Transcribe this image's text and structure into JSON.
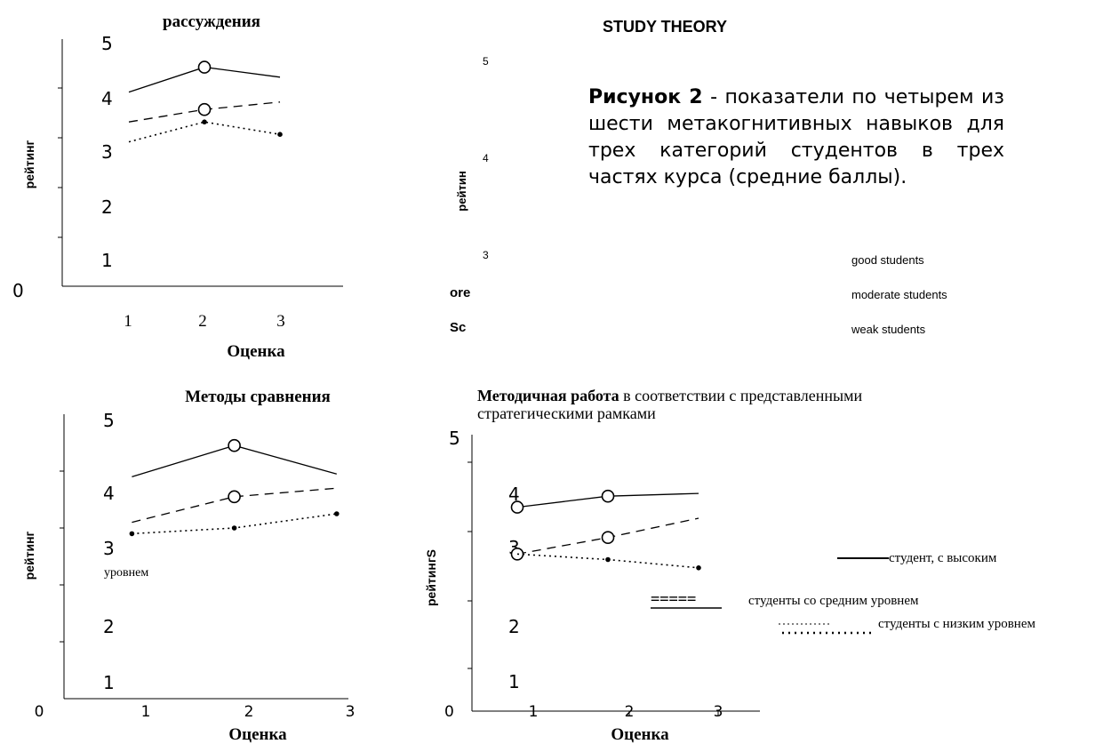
{
  "page_heading": "STUDY THEORY",
  "caption": {
    "label": "Рисунок 2",
    "text": " -  показатели по четырем из шести метакогнитивных навыков для трех категорий студентов в трех частях курса (средние баллы)."
  },
  "colors": {
    "line": "#000000",
    "background": "#ffffff"
  },
  "chart_data": [
    {
      "type": "line",
      "title": "рассуждения",
      "ylabel": "рейтинг",
      "xlabel": "Оценка",
      "x": [
        1,
        2,
        3
      ],
      "xticks": [
        "1",
        "2",
        "3"
      ],
      "ylim": [
        0,
        5
      ],
      "yticks": [
        "0",
        "1",
        "2",
        "3",
        "4",
        "5"
      ],
      "series": [
        {
          "style": "solid",
          "values": [
            3.9,
            4.4,
            4.2
          ],
          "markers": [
            "",
            "open",
            ""
          ]
        },
        {
          "style": "dashed",
          "values": [
            3.3,
            3.55,
            3.7
          ],
          "markers": [
            "",
            "open",
            ""
          ]
        },
        {
          "style": "dotted",
          "values": [
            2.9,
            3.3,
            3.05
          ],
          "markers": [
            "",
            "dot",
            "dot"
          ]
        }
      ]
    },
    {
      "type": "line",
      "title": "",
      "ylabel": "рейтин",
      "xlabel": "",
      "yticks": [
        "3",
        "4",
        "5"
      ],
      "side_labels": [
        "ore",
        "Sc"
      ],
      "legend": [
        "good students",
        "moderate students",
        "weak students"
      ],
      "series": []
    },
    {
      "type": "line",
      "title": "Методы сравнения",
      "ylabel": "рейтинг",
      "xlabel": "Оценка",
      "x": [
        0.8,
        1.7,
        2.6
      ],
      "xticks": [
        "0",
        "1",
        "2",
        "3"
      ],
      "ylim": [
        0,
        5
      ],
      "yticks": [
        "1",
        "2",
        "3",
        "4",
        "5"
      ],
      "annotations": [
        "уровнем"
      ],
      "series": [
        {
          "style": "solid",
          "values": [
            3.9,
            4.45,
            3.95
          ],
          "markers": [
            "",
            "open",
            ""
          ]
        },
        {
          "style": "dashed",
          "values": [
            3.1,
            3.55,
            3.7
          ],
          "markers": [
            "",
            "open",
            ""
          ]
        },
        {
          "style": "dotted",
          "values": [
            2.9,
            3.0,
            3.25
          ],
          "markers": [
            "dot",
            "dot",
            "dot"
          ]
        }
      ]
    },
    {
      "type": "line",
      "title": "Методичная работа в соответствии с представленными стратегическими рамками",
      "title_bold": "Методичная работа",
      "title_rest": " в соответствии с представленными",
      "title_line2": "стратегическими рамками",
      "ylabel": "рейтингS",
      "xlabel": "Оценка",
      "x": [
        1,
        2,
        3
      ],
      "xticks": [
        "1",
        "2",
        "3"
      ],
      "ylim": [
        0,
        5
      ],
      "yticks": [
        "0",
        "1",
        "2",
        "3",
        "4",
        "5"
      ],
      "series": [
        {
          "style": "solid",
          "values": [
            3.7,
            3.9,
            3.95
          ],
          "markers": [
            "open",
            "open",
            ""
          ]
        },
        {
          "style": "dashed",
          "values": [
            2.85,
            3.15,
            3.5
          ],
          "markers": [
            "open",
            "open",
            ""
          ]
        },
        {
          "style": "dotted",
          "values": [
            2.85,
            2.75,
            2.6
          ],
          "markers": [
            "",
            "dot",
            "dot"
          ]
        }
      ],
      "legend": [
        {
          "style": "solid",
          "label": "студент, с высоким",
          "glyph": ""
        },
        {
          "style": "dashed",
          "label": "студенты  со средним уровнем",
          "glyph": "====="
        },
        {
          "style": "dotted",
          "label": "студенты с низким уровнем",
          "glyph": ""
        }
      ]
    }
  ]
}
